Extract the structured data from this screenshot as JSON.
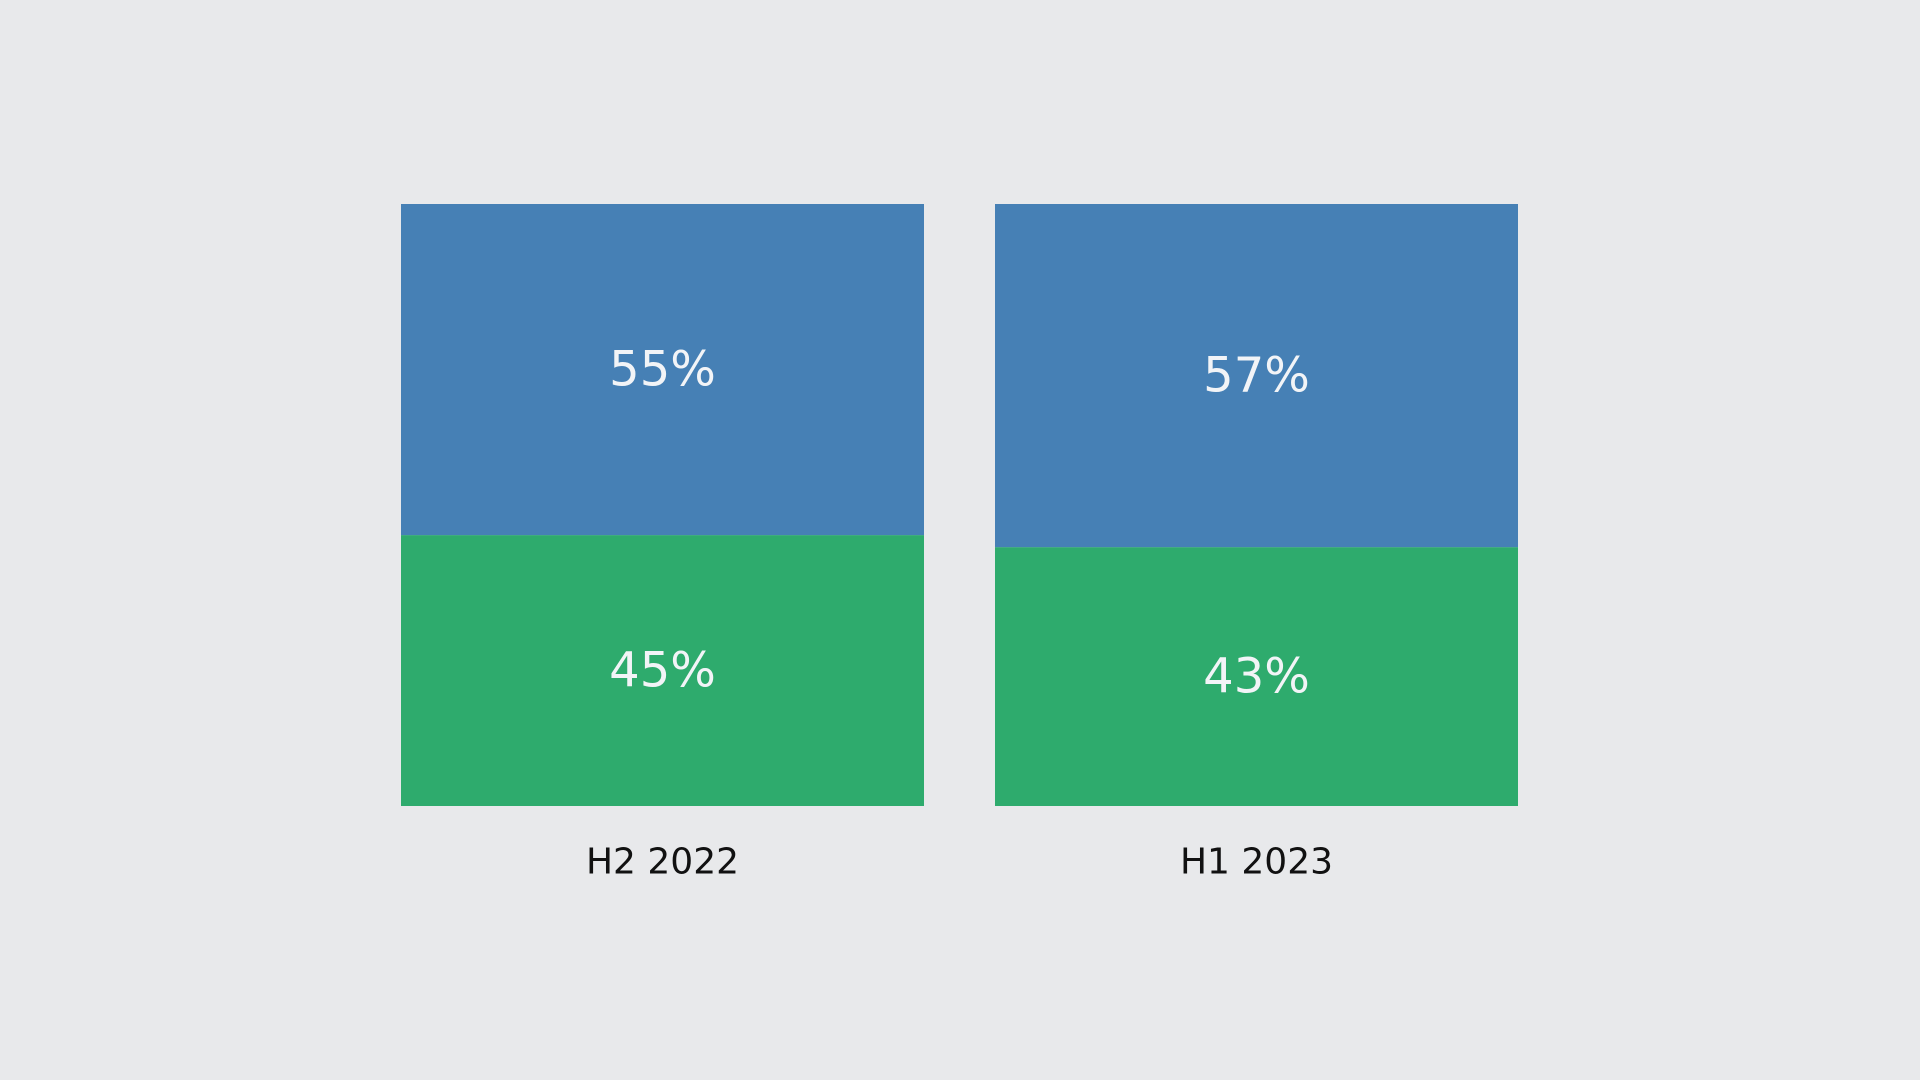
{
  "chart_data": {
    "type": "bar",
    "stacked": true,
    "normalized_to_100": true,
    "categories": [
      "H2 2022",
      "H1 2023"
    ],
    "series": [
      {
        "color": "#4680b5",
        "values": [
          55,
          57
        ],
        "labels": [
          "55%",
          "57%"
        ]
      },
      {
        "color": "#2eab6d",
        "values": [
          45,
          43
        ],
        "labels": [
          "45%",
          "43%"
        ]
      }
    ],
    "ylim": [
      0,
      100
    ],
    "grid": false,
    "axes_visible": false
  },
  "colors": {
    "background": "#e8e9eb",
    "segment_text": "#f2f4f7",
    "category_text": "#111111"
  }
}
